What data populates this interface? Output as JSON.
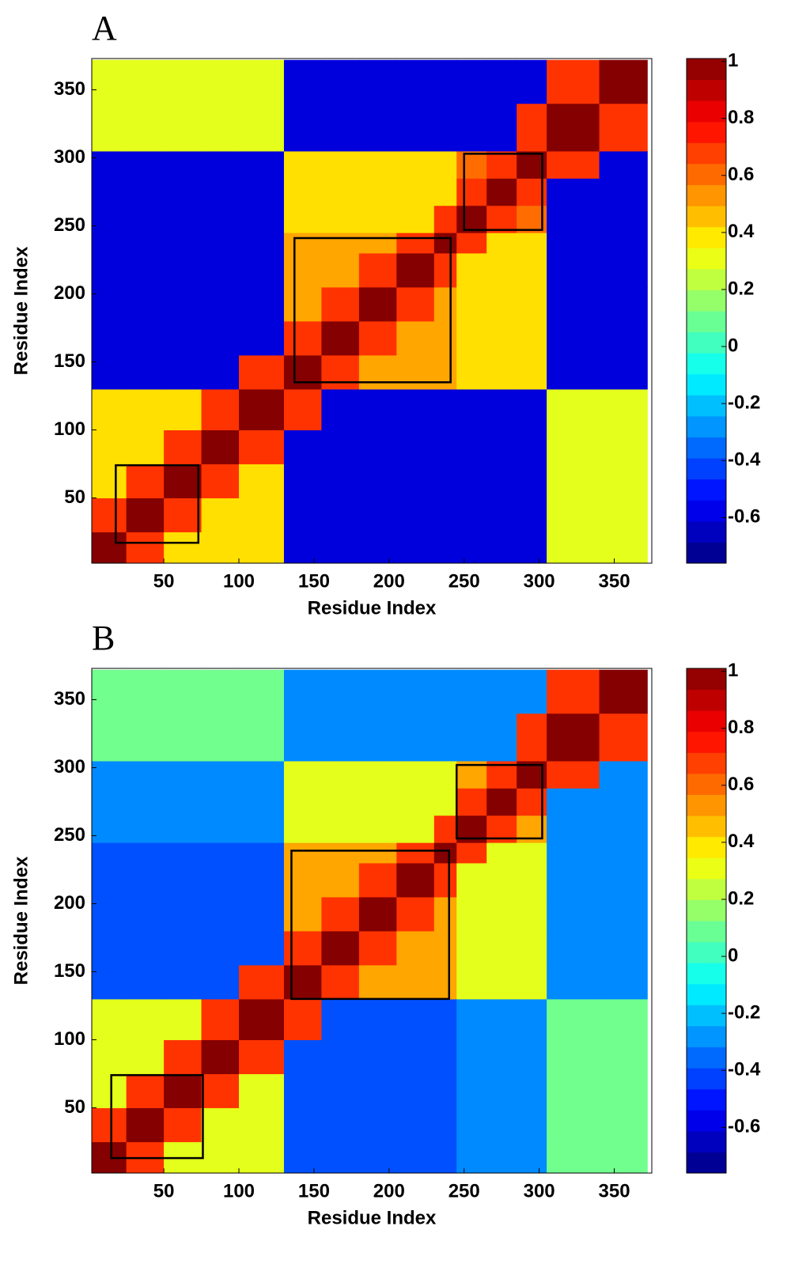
{
  "chart_data": [
    {
      "type": "heatmap",
      "title": "A",
      "xlabel": "Residue Index",
      "ylabel": "Residue Index",
      "colormap": "jet",
      "xlim": [
        2,
        375
      ],
      "ylim": [
        2,
        373
      ],
      "xticks": [
        50,
        100,
        150,
        200,
        250,
        300,
        350
      ],
      "yticks": [
        50,
        100,
        150,
        200,
        250,
        300,
        350
      ],
      "clim": [
        -0.76,
        1.01
      ],
      "cticks": [
        -0.6,
        -0.4,
        -0.2,
        0,
        0.2,
        0.4,
        0.6,
        0.8,
        1
      ],
      "bins": [
        1,
        25,
        50,
        75,
        100,
        130,
        155,
        180,
        205,
        230,
        245,
        265,
        285,
        305,
        340,
        372
      ],
      "values": [
        [
          1,
          0.7,
          0.4,
          0.4,
          0.4,
          -0.6,
          -0.6,
          -0.6,
          -0.6,
          -0.6,
          -0.6,
          -0.6,
          -0.6,
          0.3,
          0.3
        ],
        [
          0.7,
          1,
          0.7,
          0.4,
          0.4,
          -0.6,
          -0.6,
          -0.6,
          -0.6,
          -0.6,
          -0.6,
          -0.6,
          -0.6,
          0.3,
          0.3
        ],
        [
          0.4,
          0.7,
          1,
          0.7,
          0.4,
          -0.6,
          -0.6,
          -0.6,
          -0.6,
          -0.6,
          -0.6,
          -0.6,
          -0.6,
          0.3,
          0.3
        ],
        [
          0.4,
          0.4,
          0.7,
          1,
          0.7,
          -0.6,
          -0.6,
          -0.6,
          -0.6,
          -0.6,
          -0.6,
          -0.6,
          -0.6,
          0.3,
          0.3
        ],
        [
          0.4,
          0.4,
          0.4,
          0.7,
          1,
          0.7,
          -0.6,
          -0.6,
          -0.6,
          -0.6,
          -0.6,
          -0.6,
          -0.6,
          0.3,
          0.3
        ],
        [
          -0.6,
          -0.6,
          -0.6,
          -0.6,
          0.7,
          1,
          0.7,
          0.5,
          0.5,
          0.5,
          0.4,
          0.4,
          0.4,
          -0.6,
          -0.6
        ],
        [
          -0.6,
          -0.6,
          -0.6,
          -0.6,
          -0.6,
          0.7,
          1,
          0.7,
          0.5,
          0.5,
          0.4,
          0.4,
          0.4,
          -0.6,
          -0.6
        ],
        [
          -0.6,
          -0.6,
          -0.6,
          -0.6,
          -0.6,
          0.5,
          0.7,
          1,
          0.7,
          0.5,
          0.4,
          0.4,
          0.4,
          -0.6,
          -0.6
        ],
        [
          -0.6,
          -0.6,
          -0.6,
          -0.6,
          -0.6,
          0.5,
          0.5,
          0.7,
          1,
          0.7,
          0.4,
          0.4,
          0.4,
          -0.6,
          -0.6
        ],
        [
          -0.6,
          -0.6,
          -0.6,
          -0.6,
          -0.6,
          0.5,
          0.5,
          0.5,
          0.7,
          1,
          0.7,
          0.4,
          0.4,
          -0.6,
          -0.6
        ],
        [
          -0.6,
          -0.6,
          -0.6,
          -0.6,
          -0.6,
          0.4,
          0.4,
          0.4,
          0.4,
          0.7,
          1,
          0.7,
          0.6,
          -0.6,
          -0.6
        ],
        [
          -0.6,
          -0.6,
          -0.6,
          -0.6,
          -0.6,
          0.4,
          0.4,
          0.4,
          0.4,
          0.4,
          0.7,
          1,
          0.7,
          -0.6,
          -0.6
        ],
        [
          -0.6,
          -0.6,
          -0.6,
          -0.6,
          -0.6,
          0.4,
          0.4,
          0.4,
          0.4,
          0.4,
          0.6,
          0.7,
          1,
          0.7,
          -0.6
        ],
        [
          0.3,
          0.3,
          0.3,
          0.3,
          0.3,
          -0.6,
          -0.6,
          -0.6,
          -0.6,
          -0.6,
          -0.6,
          -0.6,
          0.7,
          1,
          0.7
        ],
        [
          0.3,
          0.3,
          0.3,
          0.3,
          0.3,
          -0.6,
          -0.6,
          -0.6,
          -0.6,
          -0.6,
          -0.6,
          -0.6,
          -0.6,
          0.7,
          1
        ]
      ],
      "boxes": [
        {
          "x": [
            18,
            73
          ],
          "y": [
            17,
            74
          ]
        },
        {
          "x": [
            137,
            241
          ],
          "y": [
            135,
            241
          ]
        },
        {
          "x": [
            250,
            302
          ],
          "y": [
            247,
            303
          ]
        }
      ]
    },
    {
      "type": "heatmap",
      "title": "B",
      "xlabel": "Residue Index",
      "ylabel": "Residue Index",
      "colormap": "jet",
      "xlim": [
        2,
        375
      ],
      "ylim": [
        2,
        373
      ],
      "xticks": [
        50,
        100,
        150,
        200,
        250,
        300,
        350
      ],
      "yticks": [
        50,
        100,
        150,
        200,
        250,
        300,
        350
      ],
      "clim": [
        -0.76,
        1.01
      ],
      "cticks": [
        -0.6,
        -0.4,
        -0.2,
        0,
        0.2,
        0.4,
        0.6,
        0.8,
        1
      ],
      "bins": [
        1,
        25,
        50,
        75,
        100,
        130,
        155,
        180,
        205,
        230,
        245,
        265,
        285,
        305,
        340,
        372
      ],
      "values": [
        [
          1,
          0.7,
          0.3,
          0.3,
          0.3,
          -0.4,
          -0.4,
          -0.4,
          -0.4,
          -0.4,
          -0.3,
          -0.3,
          -0.3,
          0.1,
          0.1
        ],
        [
          0.7,
          1,
          0.7,
          0.3,
          0.3,
          -0.4,
          -0.4,
          -0.4,
          -0.4,
          -0.4,
          -0.3,
          -0.3,
          -0.3,
          0.1,
          0.1
        ],
        [
          0.3,
          0.7,
          1,
          0.7,
          0.3,
          -0.4,
          -0.4,
          -0.4,
          -0.4,
          -0.4,
          -0.3,
          -0.3,
          -0.3,
          0.1,
          0.1
        ],
        [
          0.3,
          0.3,
          0.7,
          1,
          0.7,
          -0.4,
          -0.4,
          -0.4,
          -0.4,
          -0.4,
          -0.3,
          -0.3,
          -0.3,
          0.1,
          0.1
        ],
        [
          0.3,
          0.3,
          0.3,
          0.7,
          1,
          0.7,
          -0.4,
          -0.4,
          -0.4,
          -0.4,
          -0.3,
          -0.3,
          -0.3,
          0.1,
          0.1
        ],
        [
          -0.4,
          -0.4,
          -0.4,
          -0.4,
          0.7,
          1,
          0.7,
          0.5,
          0.5,
          0.5,
          0.3,
          0.3,
          0.3,
          -0.3,
          -0.3
        ],
        [
          -0.4,
          -0.4,
          -0.4,
          -0.4,
          -0.4,
          0.7,
          1,
          0.7,
          0.5,
          0.5,
          0.3,
          0.3,
          0.3,
          -0.3,
          -0.3
        ],
        [
          -0.4,
          -0.4,
          -0.4,
          -0.4,
          -0.4,
          0.5,
          0.7,
          1,
          0.7,
          0.5,
          0.3,
          0.3,
          0.3,
          -0.3,
          -0.3
        ],
        [
          -0.4,
          -0.4,
          -0.4,
          -0.4,
          -0.4,
          0.5,
          0.5,
          0.7,
          1,
          0.7,
          0.3,
          0.3,
          0.3,
          -0.3,
          -0.3
        ],
        [
          -0.4,
          -0.4,
          -0.4,
          -0.4,
          -0.4,
          0.5,
          0.5,
          0.5,
          0.7,
          1,
          0.7,
          0.3,
          0.3,
          -0.3,
          -0.3
        ],
        [
          -0.3,
          -0.3,
          -0.3,
          -0.3,
          -0.3,
          0.3,
          0.3,
          0.3,
          0.3,
          0.7,
          1,
          0.7,
          0.5,
          -0.3,
          -0.3
        ],
        [
          -0.3,
          -0.3,
          -0.3,
          -0.3,
          -0.3,
          0.3,
          0.3,
          0.3,
          0.3,
          0.3,
          0.7,
          1,
          0.7,
          -0.3,
          -0.3
        ],
        [
          -0.3,
          -0.3,
          -0.3,
          -0.3,
          -0.3,
          0.3,
          0.3,
          0.3,
          0.3,
          0.3,
          0.5,
          0.7,
          1,
          0.7,
          -0.3
        ],
        [
          0.1,
          0.1,
          0.1,
          0.1,
          0.1,
          -0.3,
          -0.3,
          -0.3,
          -0.3,
          -0.3,
          -0.3,
          -0.3,
          0.7,
          1,
          0.7
        ],
        [
          0.1,
          0.1,
          0.1,
          0.1,
          0.1,
          -0.3,
          -0.3,
          -0.3,
          -0.3,
          -0.3,
          -0.3,
          -0.3,
          -0.3,
          0.7,
          1
        ]
      ],
      "boxes": [
        {
          "x": [
            15,
            76
          ],
          "y": [
            13,
            74
          ]
        },
        {
          "x": [
            135,
            240
          ],
          "y": [
            130,
            239
          ]
        },
        {
          "x": [
            245,
            302
          ],
          "y": [
            248,
            302
          ]
        }
      ]
    }
  ]
}
